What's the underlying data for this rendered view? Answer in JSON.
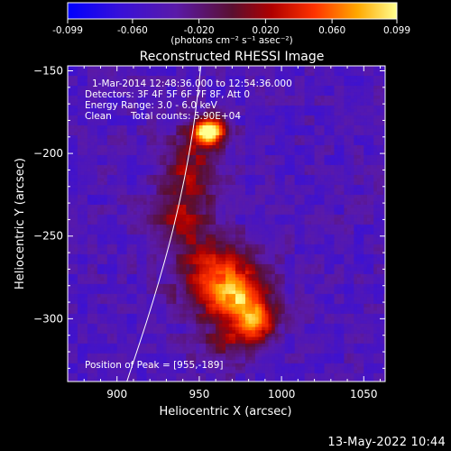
{
  "chart_data": {
    "type": "heatmap",
    "title": "Reconstructed RHESSI Image",
    "xlabel": "Heliocentric X (arcsec)",
    "ylabel": "Heliocentric Y (arcsec)",
    "xlim": [
      870,
      1063
    ],
    "ylim": [
      -338,
      -147
    ],
    "x_ticks": [
      900,
      950,
      1000,
      1050
    ],
    "y_ticks": [
      -150,
      -200,
      -250,
      -300
    ],
    "colorbar": {
      "min": -0.099,
      "max": 0.099,
      "ticks": [
        "-0.099",
        "-0.060",
        "-0.020",
        "0.020",
        "0.060",
        "0.099"
      ],
      "unit_label": "(photons cm⁻² s⁻¹ asec⁻²)"
    },
    "annotations": {
      "time_range": "1-Mar-2014 12:48:36.000 to 12:54:36.000",
      "detectors": "Detectors: 3F 4F 5F 6F 7F 8F, Att 0",
      "energy": "Energy Range: 3.0 - 6.0 keV",
      "clean": "Clean",
      "counts": "Total counts: 5.90E+04",
      "peak": "Position of Peak = [955,-189]"
    },
    "sources": [
      {
        "x": 956,
        "y": -187,
        "sx": 7,
        "sy": 6,
        "amp": 0.15
      },
      {
        "x": 944,
        "y": -210,
        "sx": 12,
        "sy": 16,
        "amp": 0.06
      },
      {
        "x": 938,
        "y": -240,
        "sx": 13,
        "sy": 12,
        "amp": 0.05
      },
      {
        "x": 960,
        "y": -262,
        "sx": 16,
        "sy": 10,
        "amp": 0.05
      },
      {
        "x": 962,
        "y": -282,
        "sx": 16,
        "sy": 12,
        "amp": 0.085
      },
      {
        "x": 978,
        "y": -292,
        "sx": 12,
        "sy": 12,
        "amp": 0.08
      },
      {
        "x": 985,
        "y": -303,
        "sx": 8,
        "sy": 7,
        "amp": 0.07
      },
      {
        "x": 968,
        "y": -316,
        "sx": 14,
        "sy": 9,
        "amp": 0.04
      }
    ],
    "limb_curve": [
      [
        906,
        -338
      ],
      [
        922,
        -290
      ],
      [
        936,
        -240
      ],
      [
        946,
        -190
      ],
      [
        951,
        -147
      ]
    ]
  },
  "footer": {
    "timestamp": "13-May-2022 10:44"
  }
}
